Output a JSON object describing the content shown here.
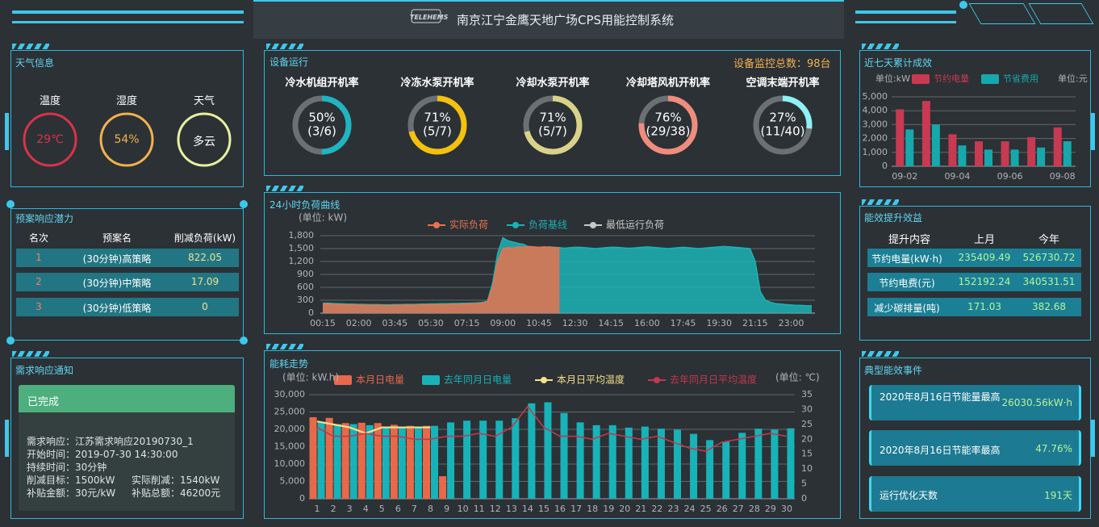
{
  "header": {
    "title": "南京江宁金鹰天地广场CPS用能控制系统",
    "logo": "TELEHEMS"
  },
  "weather": {
    "title": "天气信息",
    "items": [
      {
        "label": "温度",
        "value": "29℃"
      },
      {
        "label": "湿度",
        "value": "54%"
      },
      {
        "label": "天气",
        "value": "多云"
      }
    ]
  },
  "plan": {
    "title": "预案响应潜力",
    "columns": [
      "名次",
      "预案名",
      "削减负荷(kW)"
    ],
    "rows": [
      [
        1,
        "(30分钟)高策略",
        822.05
      ],
      [
        2,
        "(30分钟)中策略",
        17.09
      ],
      [
        3,
        "(30分钟)低策略",
        0
      ]
    ]
  },
  "notice": {
    "title": "需求响应通知",
    "status": "已完成",
    "lines": [
      "需求响应：江苏需求响应20190730_1",
      "开始时间：2019-07-30 14:30:00",
      "持续时间：30分钟"
    ],
    "pairs": [
      [
        "削减目标：1500kW",
        "实际削减：1540kW"
      ],
      [
        "补贴金额：30元/kW",
        "补贴总额：46200元"
      ]
    ]
  },
  "equipment": {
    "title": "设备运行",
    "total": "设备监控总数：98台",
    "gauges": [
      {
        "name": "冷水机组开机率",
        "value": 50,
        "label": "50%",
        "detail": "(3/6)",
        "color": "#1fb5c0"
      },
      {
        "name": "冷冻水泵开机率",
        "value": 71,
        "label": "71%",
        "detail": "(5/7)",
        "color": "#f3c10e"
      },
      {
        "name": "冷却水泵开机率",
        "value": 71,
        "label": "71%",
        "detail": "(5/7)",
        "color": "#d9d38a"
      },
      {
        "name": "冷却塔风机开机率",
        "value": 76,
        "label": "76%",
        "detail": "(29/38)",
        "color": "#f08c7d"
      },
      {
        "name": "空调末端开机率",
        "value": 27,
        "label": "27%",
        "detail": "(11/40)",
        "color": "#8ff0f5"
      }
    ]
  },
  "efficiency": {
    "title": "能效提升效益",
    "columns": [
      "提升内容",
      "上月",
      "今年"
    ],
    "rows": [
      [
        "节约电量(kW·h)",
        235409.49,
        526730.72
      ],
      [
        "节约电费(元)",
        152192.24,
        340531.51
      ],
      [
        "减少碳排量(吨)",
        171.03,
        382.68
      ]
    ]
  },
  "events": {
    "title": "典型能效事件",
    "items": [
      {
        "text": "2020年8月16日节能量最高",
        "value": "26030.56kW·h"
      },
      {
        "text": "2020年8月16日节能率最高",
        "value": "47.76%"
      },
      {
        "text": "运行优化天数",
        "value": "191天"
      }
    ]
  },
  "chart_data": [
    {
      "type": "bar",
      "title": "近七天累计成效",
      "unit_left": "单位:kW",
      "unit_right": "单位:元",
      "categories": [
        "09-02",
        null,
        "09-04",
        null,
        "09-06",
        null,
        "09-08"
      ],
      "series": [
        {
          "name": "节约电量",
          "color": "#c73a52",
          "values": [
            4100,
            4700,
            2300,
            1800,
            1800,
            2100,
            2800
          ]
        },
        {
          "name": "节省费用",
          "color": "#17a8ac",
          "values": [
            2650,
            3000,
            1500,
            1200,
            1200,
            1350,
            1800
          ]
        }
      ],
      "ylim": [
        0,
        5000
      ],
      "yticks": [
        0,
        {
          "value": 1000,
          "label": "1,000"
        },
        {
          "value": 2000,
          "label": "2,000"
        },
        {
          "value": 3000,
          "label": "3,000"
        },
        {
          "value": 4000,
          "label": "4,000"
        },
        {
          "value": 5000,
          "label": "5,000"
        }
      ],
      "grid": true
    },
    {
      "type": "area",
      "title": "24小时负荷曲线",
      "y_label": "(单位: kW)",
      "categories": [
        "00:15",
        null,
        null,
        null,
        null,
        null,
        null,
        "02:00",
        null,
        null,
        null,
        null,
        null,
        null,
        "03:45",
        null,
        null,
        null,
        null,
        null,
        null,
        "05:30",
        null,
        null,
        null,
        null,
        null,
        null,
        "07:15",
        null,
        null,
        null,
        null,
        null,
        null,
        "09:00",
        null,
        null,
        null,
        null,
        null,
        null,
        "10:45",
        null,
        null,
        null,
        null,
        null,
        null,
        "12:30",
        null,
        null,
        null,
        null,
        null,
        null,
        "14:15",
        null,
        null,
        null,
        null,
        null,
        null,
        "16:00",
        null,
        null,
        null,
        null,
        null,
        null,
        "17:45",
        null,
        null,
        null,
        null,
        null,
        null,
        "19:30",
        null,
        null,
        null,
        null,
        null,
        null,
        "21:15",
        null,
        null,
        null,
        null,
        null,
        null,
        "23:00",
        null,
        null,
        null,
        null
      ],
      "series": [
        {
          "name": "实际负荷",
          "color": "#e8734f",
          "values": [
            210,
            215,
            205,
            200,
            195,
            190,
            190,
            185,
            185,
            180,
            180,
            180,
            175,
            175,
            180,
            180,
            185,
            185,
            185,
            190,
            190,
            195,
            195,
            200,
            200,
            205,
            205,
            210,
            210,
            215,
            220,
            230,
            260,
            600,
            1200,
            1500,
            1520,
            1510,
            1540,
            1530,
            1550,
            1540,
            1530,
            1540,
            1530,
            1520,
            1520,
            null,
            null,
            null,
            null,
            null,
            null,
            null,
            null,
            null,
            null,
            null,
            null,
            null,
            null,
            null,
            null,
            null,
            null,
            null,
            null,
            null,
            null,
            null,
            null,
            null,
            null,
            null,
            null,
            null,
            null,
            null,
            null,
            null,
            null,
            null,
            null,
            null,
            null,
            null,
            null,
            null,
            null,
            null,
            null,
            null,
            null,
            null,
            null,
            null
          ]
        },
        {
          "name": "负荷基线",
          "color": "#1cb3b5",
          "values": [
            230,
            235,
            225,
            220,
            215,
            210,
            210,
            205,
            205,
            200,
            200,
            200,
            195,
            195,
            200,
            200,
            205,
            205,
            205,
            210,
            210,
            215,
            215,
            220,
            220,
            225,
            225,
            230,
            230,
            235,
            240,
            250,
            280,
            700,
            1400,
            1750,
            1680,
            1650,
            1620,
            1600,
            1540,
            1530,
            1520,
            1530,
            1540,
            1530,
            1520,
            1510,
            1520,
            1530,
            1530,
            1520,
            1510,
            1500,
            1510,
            1520,
            1530,
            1530,
            1520,
            1510,
            1510,
            1520,
            1530,
            1540,
            1530,
            1520,
            1510,
            1500,
            1510,
            1520,
            1530,
            1520,
            1510,
            1500,
            1510,
            1520,
            1530,
            1540,
            1550,
            1540,
            1530,
            1520,
            1510,
            1500,
            1200,
            500,
            300,
            250,
            220,
            210,
            200,
            190,
            180,
            180,
            170,
            170
          ]
        },
        {
          "name": "最低运行负荷",
          "color": "#c8c8c8",
          "values": [
            null,
            null,
            null,
            null,
            null,
            null,
            null,
            null,
            null,
            null,
            null,
            null,
            null,
            null,
            null,
            null,
            null,
            null,
            null,
            null,
            null,
            null,
            null,
            null,
            null,
            null,
            null,
            null,
            null,
            null,
            null,
            null,
            null,
            null,
            null,
            null,
            null,
            null,
            null,
            null,
            null,
            null,
            null,
            null,
            null,
            null,
            null,
            null,
            null,
            null,
            null,
            null,
            null,
            null,
            null,
            null,
            null,
            null,
            null,
            null,
            null,
            null,
            null,
            null,
            null,
            null,
            null,
            null,
            null,
            null,
            null,
            null,
            null,
            null,
            null,
            null,
            null,
            null,
            null,
            null,
            null,
            null,
            null,
            null,
            null,
            null,
            null,
            null,
            null,
            null,
            null,
            null,
            null,
            null,
            null,
            null
          ]
        }
      ],
      "ylim": [
        0,
        1800
      ],
      "yticks": [
        0,
        300,
        600,
        900,
        {
          "value": 1200,
          "label": "1,200"
        },
        {
          "value": 1500,
          "label": "1,500"
        },
        {
          "value": 1800,
          "label": "1,800"
        }
      ],
      "grid": true
    },
    {
      "type": "bar",
      "title": "能耗走势",
      "y_label": "(单位: kW.h)",
      "y2_label": "(单位: ℃)",
      "categories": [
        "1",
        "2",
        "3",
        "4",
        "5",
        "6",
        "7",
        "8",
        "9",
        "10",
        "11",
        "12",
        "13",
        "14",
        "15",
        "16",
        "17",
        "18",
        "19",
        "20",
        "21",
        "22",
        "23",
        "24",
        "25",
        "26",
        "27",
        "28",
        "29",
        "30"
      ],
      "series": [
        {
          "name": "本月日电量",
          "color": "#e8684a",
          "values": [
            23500,
            23300,
            21800,
            21900,
            21800,
            21300,
            21000,
            21000,
            6500,
            null,
            null,
            null,
            null,
            null,
            null,
            null,
            null,
            null,
            null,
            null,
            null,
            null,
            null,
            null,
            null,
            null,
            null,
            null,
            null,
            null
          ]
        },
        {
          "name": "去年同月日电量",
          "color": "#17b3b8",
          "values": [
            22000,
            21500,
            21500,
            21200,
            20800,
            20800,
            20800,
            21000,
            22000,
            22500,
            22500,
            22500,
            23200,
            27500,
            27800,
            24700,
            22000,
            21200,
            21200,
            20500,
            20800,
            20200,
            19900,
            18700,
            16900,
            16500,
            19000,
            20200,
            19900,
            20300
          ]
        },
        {
          "name": "本月日平均温度",
          "type": "line",
          "axis": "y2",
          "color": "#f5e08c",
          "values": [
            26,
            25,
            24,
            22,
            24,
            24,
            24,
            24,
            null,
            null,
            null,
            null,
            null,
            null,
            null,
            null,
            null,
            null,
            null,
            null,
            null,
            null,
            null,
            null,
            null,
            null,
            null,
            null,
            null,
            null
          ]
        },
        {
          "name": "去年同月日平均温度",
          "type": "line",
          "axis": "y2",
          "color": "#c2384f",
          "values": [
            24,
            21,
            21,
            22,
            21,
            21,
            20,
            20,
            21,
            21,
            22,
            21,
            24,
            31,
            24,
            21,
            21,
            20,
            22,
            21,
            20,
            21,
            19,
            17,
            16,
            19,
            20,
            21,
            22,
            21
          ]
        }
      ],
      "ylim": [
        0,
        30000
      ],
      "yticks": [
        0,
        {
          "value": 5000,
          "label": "5,000"
        },
        {
          "value": 10000,
          "label": "10,000"
        },
        {
          "value": 15000,
          "label": "15,000"
        },
        {
          "value": 20000,
          "label": "20,000"
        },
        {
          "value": 25000,
          "label": "25,000"
        },
        {
          "value": 30000,
          "label": "30,000"
        }
      ],
      "y2lim": [
        0,
        35
      ],
      "y2ticks": [
        0,
        5,
        10,
        15,
        20,
        25,
        30,
        35
      ],
      "grid": true
    }
  ]
}
